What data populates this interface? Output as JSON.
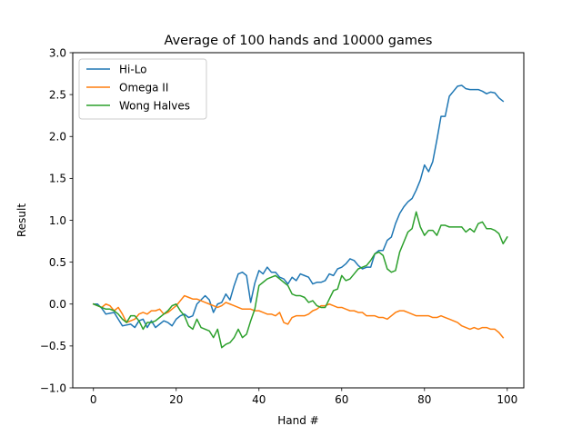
{
  "chart_data": {
    "type": "line",
    "title": "Average of 100 hands and 10000 games",
    "xlabel": "Hand #",
    "ylabel": "Result",
    "xlim": [
      -5,
      104
    ],
    "ylim": [
      -1.0,
      3.0
    ],
    "xticks": [
      "0",
      "20",
      "40",
      "60",
      "80",
      "100"
    ],
    "xtick_values": [
      0,
      20,
      40,
      60,
      80,
      100
    ],
    "yticks": [
      "−1.0",
      "−0.5",
      "0.0",
      "0.5",
      "1.0",
      "1.5",
      "2.0",
      "2.5",
      "3.0"
    ],
    "ytick_values": [
      -1.0,
      -0.5,
      0.0,
      0.5,
      1.0,
      1.5,
      2.0,
      2.5,
      3.0
    ],
    "grid": false,
    "legend_position": "top-left",
    "series": [
      {
        "name": "Hi-Lo",
        "color": "#1f77b4",
        "values": [
          0.0,
          0.0,
          -0.05,
          -0.12,
          -0.11,
          -0.1,
          -0.18,
          -0.26,
          -0.25,
          -0.24,
          -0.28,
          -0.2,
          -0.18,
          -0.28,
          -0.2,
          -0.28,
          -0.24,
          -0.2,
          -0.22,
          -0.26,
          -0.18,
          -0.14,
          -0.12,
          -0.16,
          -0.14,
          0.0,
          0.05,
          0.1,
          0.05,
          -0.1,
          0.0,
          0.02,
          0.12,
          0.05,
          0.22,
          0.36,
          0.38,
          0.34,
          0.02,
          0.25,
          0.4,
          0.36,
          0.44,
          0.38,
          0.38,
          0.32,
          0.3,
          0.24,
          0.32,
          0.28,
          0.36,
          0.34,
          0.32,
          0.24,
          0.26,
          0.26,
          0.28,
          0.36,
          0.34,
          0.42,
          0.44,
          0.48,
          0.54,
          0.52,
          0.46,
          0.42,
          0.44,
          0.44,
          0.6,
          0.64,
          0.64,
          0.76,
          0.8,
          0.96,
          1.08,
          1.16,
          1.22,
          1.26,
          1.36,
          1.48,
          1.66,
          1.58,
          1.7,
          1.96,
          2.24,
          2.24,
          2.48,
          2.54,
          2.6,
          2.61,
          2.57,
          2.56,
          2.56,
          2.56,
          2.54,
          2.51,
          2.53,
          2.52,
          2.46,
          2.42
        ]
      },
      {
        "name": "Omega II",
        "color": "#ff7f0e",
        "values": [
          0.0,
          -0.02,
          -0.04,
          0.0,
          -0.02,
          -0.08,
          -0.04,
          -0.12,
          -0.22,
          -0.2,
          -0.18,
          -0.12,
          -0.1,
          -0.12,
          -0.08,
          -0.08,
          -0.06,
          -0.12,
          -0.1,
          -0.06,
          -0.02,
          0.04,
          0.1,
          0.08,
          0.06,
          0.06,
          0.04,
          0.02,
          0.0,
          -0.02,
          -0.04,
          -0.02,
          0.02,
          0.0,
          -0.02,
          -0.04,
          -0.06,
          -0.06,
          -0.06,
          -0.08,
          -0.08,
          -0.1,
          -0.12,
          -0.12,
          -0.14,
          -0.1,
          -0.22,
          -0.24,
          -0.16,
          -0.14,
          -0.14,
          -0.14,
          -0.12,
          -0.08,
          -0.06,
          -0.02,
          -0.02,
          0.0,
          -0.02,
          -0.04,
          -0.04,
          -0.06,
          -0.08,
          -0.08,
          -0.1,
          -0.1,
          -0.14,
          -0.14,
          -0.14,
          -0.16,
          -0.16,
          -0.18,
          -0.14,
          -0.1,
          -0.08,
          -0.08,
          -0.1,
          -0.12,
          -0.14,
          -0.14,
          -0.14,
          -0.14,
          -0.16,
          -0.16,
          -0.14,
          -0.16,
          -0.18,
          -0.2,
          -0.22,
          -0.26,
          -0.28,
          -0.3,
          -0.28,
          -0.3,
          -0.28,
          -0.28,
          -0.3,
          -0.3,
          -0.34,
          -0.4
        ]
      },
      {
        "name": "Wong Halves",
        "color": "#2ca02c",
        "values": [
          0.0,
          -0.02,
          -0.04,
          -0.06,
          -0.06,
          -0.08,
          -0.12,
          -0.18,
          -0.22,
          -0.14,
          -0.14,
          -0.2,
          -0.3,
          -0.22,
          -0.22,
          -0.2,
          -0.16,
          -0.12,
          -0.08,
          -0.02,
          0.0,
          -0.08,
          -0.14,
          -0.26,
          -0.3,
          -0.18,
          -0.28,
          -0.3,
          -0.32,
          -0.4,
          -0.3,
          -0.52,
          -0.48,
          -0.46,
          -0.4,
          -0.3,
          -0.4,
          -0.36,
          -0.2,
          -0.06,
          0.22,
          0.26,
          0.3,
          0.32,
          0.34,
          0.3,
          0.26,
          0.22,
          0.12,
          0.1,
          0.1,
          0.08,
          0.02,
          0.04,
          -0.02,
          -0.04,
          -0.04,
          0.06,
          0.16,
          0.18,
          0.34,
          0.28,
          0.3,
          0.36,
          0.42,
          0.44,
          0.46,
          0.52,
          0.6,
          0.62,
          0.58,
          0.42,
          0.38,
          0.4,
          0.62,
          0.74,
          0.86,
          0.9,
          1.1,
          0.92,
          0.82,
          0.88,
          0.88,
          0.82,
          0.94,
          0.94,
          0.92,
          0.92,
          0.92,
          0.92,
          0.86,
          0.9,
          0.86,
          0.96,
          0.98,
          0.9,
          0.9,
          0.88,
          0.84,
          0.72,
          0.8
        ]
      }
    ]
  }
}
